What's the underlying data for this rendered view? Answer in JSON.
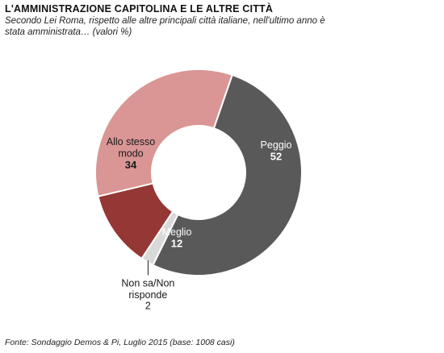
{
  "title": "L'AMMINISTRAZIONE  CAPITOLINA  E LE ALTRE CITTÀ",
  "subtitle": "Secondo Lei Roma, rispetto alle altre principali città italiane, nell'ultimo anno è stata amministrata… (valori %)",
  "source": "Fonte: Sondaggio Demos & Pi, Luglio 2015 (base: 1008 casi)",
  "chart_data": {
    "type": "pie",
    "donut": true,
    "start_angle_deg": 19,
    "direction": "clockwise",
    "slices": [
      {
        "name": "Peggio",
        "label_lines": [
          "Peggio"
        ],
        "value": 52,
        "color": "#595959",
        "text_color": "#ffffff"
      },
      {
        "name": "Non sa/Non risponde",
        "label_lines": [
          "Non sa/Non",
          "risponde"
        ],
        "value": 2,
        "color": "#d9d9d9",
        "text_color": "#1a1a1a"
      },
      {
        "name": "Meglio",
        "label_lines": [
          "Meglio"
        ],
        "value": 12,
        "color": "#953735",
        "text_color": "#ffffff"
      },
      {
        "name": "Allo stesso modo",
        "label_lines": [
          "Allo stesso",
          "modo"
        ],
        "value": 34,
        "color": "#d99694",
        "text_color": "#1a1a1a"
      }
    ]
  }
}
